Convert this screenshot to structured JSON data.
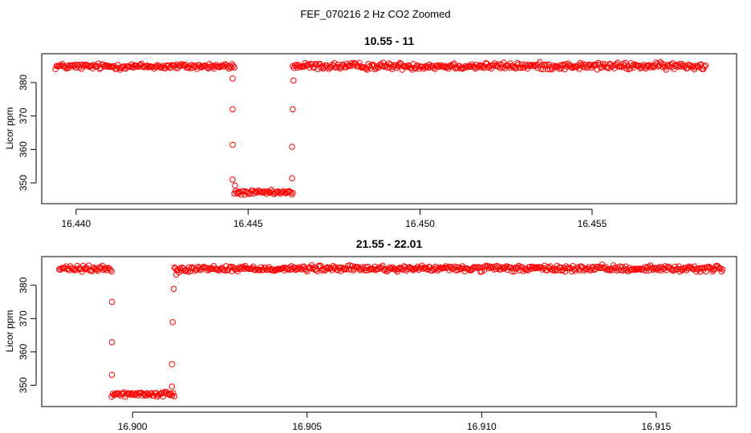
{
  "figure": {
    "title": "FEF_070216  2 Hz CO2 Zoomed"
  },
  "colors": {
    "points": "#ff0000",
    "axis": "#000000"
  },
  "chart_data": [
    {
      "type": "scatter",
      "title": "10.55 - 11",
      "ylabel": "Licor ppm",
      "xlabel": "",
      "xlim": [
        16.439,
        16.4592
      ],
      "ylim": [
        343.8,
        388.6
      ],
      "xticks": [
        16.44,
        16.445,
        16.45,
        16.455
      ],
      "xtick_labels": [
        "16.440",
        "16.445",
        "16.450",
        "16.455"
      ],
      "yticks": [
        350,
        360,
        370,
        380
      ],
      "ytick_labels": [
        "350",
        "360",
        "370",
        "380"
      ],
      "marker": "open-circle",
      "grid": false,
      "segments": [
        {
          "x_start": 16.4394,
          "x_end": 16.4446,
          "y_mean": 384.8,
          "y_spread": 1.3
        },
        {
          "x_start": 16.4446,
          "x_end": 16.4463,
          "y_mean": 347.1,
          "y_spread": 1.0
        },
        {
          "x_start": 16.4463,
          "x_end": 16.4583,
          "y_mean": 384.9,
          "y_spread": 1.5
        }
      ],
      "transition_points": [
        {
          "x": 16.44455,
          "y": 381.2
        },
        {
          "x": 16.44455,
          "y": 372.0
        },
        {
          "x": 16.44455,
          "y": 361.4
        },
        {
          "x": 16.44455,
          "y": 351.0
        },
        {
          "x": 16.44462,
          "y": 349.2
        },
        {
          "x": 16.44628,
          "y": 351.4
        },
        {
          "x": 16.44628,
          "y": 360.8
        },
        {
          "x": 16.4463,
          "y": 372.0
        },
        {
          "x": 16.44632,
          "y": 380.6
        }
      ]
    },
    {
      "type": "scatter",
      "title": "21.55 - 22.01",
      "ylabel": "Licor ppm",
      "xlabel": "",
      "xlim": [
        16.8974,
        16.9173
      ],
      "ylim": [
        343.6,
        388.6
      ],
      "xticks": [
        16.9,
        16.905,
        16.91,
        16.915
      ],
      "xtick_labels": [
        "16.900",
        "16.905",
        "16.910",
        "16.915"
      ],
      "yticks": [
        350,
        360,
        370,
        380
      ],
      "ytick_labels": [
        "350",
        "360",
        "370",
        "380"
      ],
      "marker": "open-circle",
      "grid": false,
      "segments": [
        {
          "x_start": 16.8979,
          "x_end": 16.8994,
          "y_mean": 384.9,
          "y_spread": 1.3
        },
        {
          "x_start": 16.8994,
          "x_end": 16.9012,
          "y_mean": 347.3,
          "y_spread": 1.1
        },
        {
          "x_start": 16.9012,
          "x_end": 16.9169,
          "y_mean": 385.0,
          "y_spread": 1.3
        }
      ],
      "transition_points": [
        {
          "x": 16.89941,
          "y": 375.0
        },
        {
          "x": 16.89941,
          "y": 362.9
        },
        {
          "x": 16.89941,
          "y": 353.1
        },
        {
          "x": 16.90113,
          "y": 349.6
        },
        {
          "x": 16.90113,
          "y": 356.3
        },
        {
          "x": 16.90115,
          "y": 368.9
        },
        {
          "x": 16.90118,
          "y": 378.9
        },
        {
          "x": 16.90125,
          "y": 383.2
        }
      ]
    }
  ]
}
